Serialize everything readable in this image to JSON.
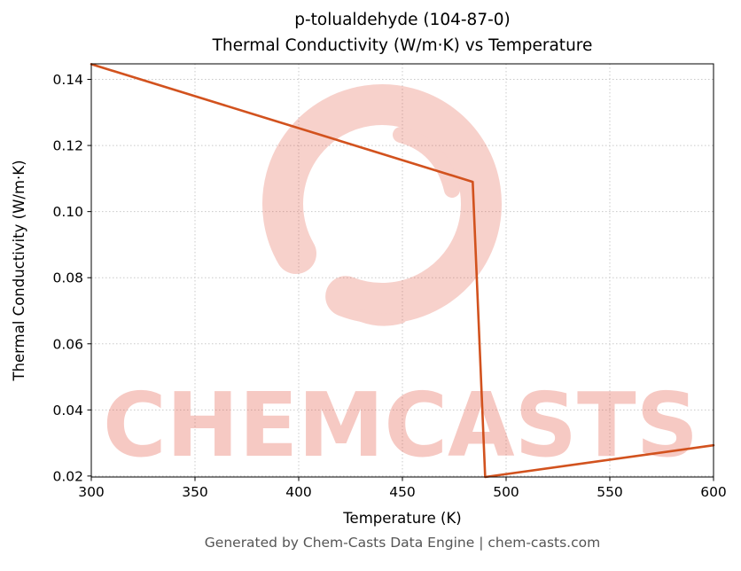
{
  "title": {
    "line1": "p-tolualdehyde (104-87-0)",
    "line2": "Thermal Conductivity (W/m·K) vs Temperature"
  },
  "footer": {
    "text": "Generated by Chem-Casts Data Engine | chem-casts.com"
  },
  "watermark": {
    "text": "CHEMCASTS",
    "logo": "brush-circle-logo",
    "color": "#e2503c",
    "text_opacity": 0.3,
    "logo_opacity": 0.26
  },
  "chart_data": {
    "type": "line",
    "title": "p-tolualdehyde (104-87-0) — Thermal Conductivity (W/m·K) vs Temperature",
    "xlabel": "Temperature (K)",
    "ylabel": "Thermal Conductivity (W/m·K)",
    "xlim": [
      300,
      600
    ],
    "ylim": [
      0.0197,
      0.1447
    ],
    "xticks": [
      300,
      350,
      400,
      450,
      500,
      550,
      600
    ],
    "yticks": [
      0.02,
      0.04,
      0.06,
      0.08,
      0.1,
      0.12,
      0.14
    ],
    "xtick_labels": [
      "300",
      "350",
      "400",
      "450",
      "500",
      "550",
      "600"
    ],
    "ytick_labels": [
      "0.02",
      "0.04",
      "0.06",
      "0.08",
      "0.10",
      "0.12",
      "0.14"
    ],
    "grid": true,
    "legend": "none",
    "line_color": "#d2521e",
    "line_width": 2.6,
    "series": [
      {
        "name": "thermal-conductivity",
        "x": [
          300,
          483.9,
          489.9,
          600
        ],
        "y": [
          0.1446,
          0.109,
          0.0197,
          0.0293
        ],
        "note": "liquid branch decreasing 300-484 K, phase-change drop at ~484-490 K, vapor branch rising 490-600 K"
      }
    ]
  }
}
